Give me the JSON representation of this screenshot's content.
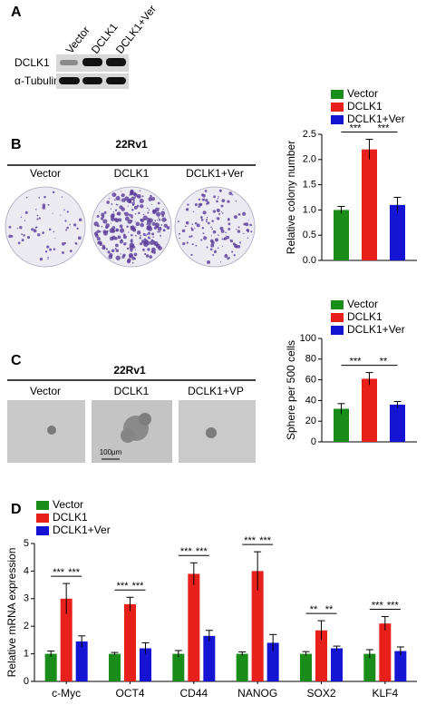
{
  "panel_labels": [
    "A",
    "B",
    "C",
    "D"
  ],
  "blot": {
    "lanes": [
      "Vector",
      "DCLK1",
      "DCLK1+Ver"
    ],
    "rows": [
      "DCLK1",
      "α-Tubulin"
    ]
  },
  "colony_assay": {
    "title": "22Rv1",
    "groups": [
      "Vector",
      "DCLK1",
      "DCLK1+Ver"
    ]
  },
  "sphere_assay": {
    "title": "22Rv1",
    "groups": [
      "Vector",
      "DCLK1",
      "DCLK1+VP"
    ],
    "scale_bar": "100μm"
  },
  "chart_data": [
    {
      "type": "bar",
      "ylabel": "Relative colony number",
      "series": [
        {
          "name": "Vector",
          "color": "#1a8c1a",
          "values": [
            1.0
          ],
          "errors": [
            0.07
          ]
        },
        {
          "name": "DCLK1",
          "color": "#e8201c",
          "values": [
            2.2
          ],
          "errors": [
            0.2
          ]
        },
        {
          "name": "DCLK1+Ver",
          "color": "#1414d2",
          "values": [
            1.1
          ],
          "errors": [
            0.15
          ]
        }
      ],
      "ylim": [
        0,
        2.5
      ],
      "yticks": [
        {
          "value": 0,
          "label": "0.0"
        },
        0.5,
        {
          "value": 1,
          "label": "1.0"
        },
        1.5,
        {
          "value": 2,
          "label": "2.0"
        },
        2.5
      ],
      "significance": [
        [
          "***",
          "***"
        ]
      ]
    },
    {
      "type": "bar",
      "ylabel": "Sphere per 500 cells",
      "series": [
        {
          "name": "Vector",
          "color": "#1a8c1a",
          "values": [
            32
          ],
          "errors": [
            5
          ]
        },
        {
          "name": "DCLK1",
          "color": "#e8201c",
          "values": [
            61
          ],
          "errors": [
            6
          ]
        },
        {
          "name": "DCLK1+Ver",
          "color": "#1414d2",
          "values": [
            36
          ],
          "errors": [
            3
          ]
        }
      ],
      "ylim": [
        0,
        100
      ],
      "yticks": [
        0,
        20,
        40,
        60,
        80,
        100
      ],
      "significance": [
        [
          "***",
          "**"
        ]
      ]
    },
    {
      "type": "bar",
      "ylabel": "Relative mRNA expression",
      "categories": [
        "c-Myc",
        "OCT4",
        "CD44",
        "NANOG",
        "SOX2",
        "KLF4"
      ],
      "series": [
        {
          "name": "Vector",
          "color": "#1a8c1a",
          "values": [
            1,
            1,
            1,
            1,
            1,
            1
          ],
          "errors": [
            0.1,
            0.05,
            0.12,
            0.07,
            0.08,
            0.15
          ]
        },
        {
          "name": "DCLK1",
          "color": "#e8201c",
          "values": [
            3.0,
            2.8,
            3.9,
            4.0,
            1.85,
            2.1
          ],
          "errors": [
            0.55,
            0.25,
            0.4,
            0.7,
            0.35,
            0.25
          ]
        },
        {
          "name": "DCLK1+Ver",
          "color": "#1414d2",
          "values": [
            1.45,
            1.2,
            1.65,
            1.4,
            1.2,
            1.1
          ],
          "errors": [
            0.2,
            0.2,
            0.2,
            0.3,
            0.08,
            0.15
          ]
        }
      ],
      "ylim": [
        0,
        5
      ],
      "yticks": [
        0,
        1,
        2,
        3,
        4,
        5
      ],
      "significance": [
        [
          "***",
          "***"
        ],
        [
          "***",
          "***"
        ],
        [
          "***",
          "***"
        ],
        [
          "***",
          "***"
        ],
        [
          "**",
          "**"
        ],
        [
          "***",
          "***"
        ]
      ]
    }
  ]
}
